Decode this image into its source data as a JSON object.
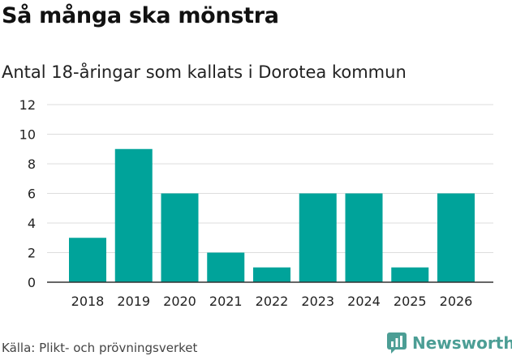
{
  "title": "Så många ska mönstra",
  "subtitle": "Antal 18-åringar som kallats i Dorotea kommun",
  "source": "Källa: Plikt- och prövningsverket",
  "brand": {
    "name": "Newsworthy",
    "icon": "newsworthy-logo-icon",
    "color": "#4c9e95"
  },
  "colors": {
    "bar": "#00a39a",
    "grid": "#dddddd",
    "axis": "#333333",
    "text": "#222222"
  },
  "chart_data": {
    "type": "bar",
    "title": "Så många ska mönstra",
    "subtitle": "Antal 18-åringar som kallats i Dorotea kommun",
    "xlabel": "",
    "ylabel": "",
    "categories": [
      "2018",
      "2019",
      "2020",
      "2021",
      "2022",
      "2023",
      "2024",
      "2025",
      "2026"
    ],
    "values": [
      3,
      9,
      6,
      2,
      1,
      6,
      6,
      1,
      6
    ],
    "ylim": [
      0,
      12
    ],
    "yticks": [
      0,
      2,
      4,
      6,
      8,
      10,
      12
    ],
    "grid": true,
    "legend": "none"
  }
}
